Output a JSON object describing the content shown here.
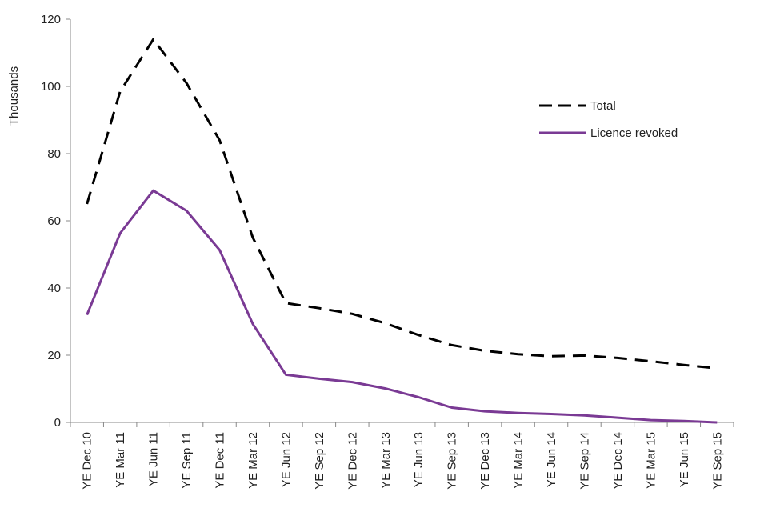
{
  "chart_data": {
    "type": "line",
    "title": "",
    "xlabel": "",
    "ylabel": "Thousands",
    "ylim": [
      0,
      120
    ],
    "yticks": [
      0,
      20,
      40,
      60,
      80,
      100,
      120
    ],
    "grid": false,
    "legend_position": "top-right",
    "categories": [
      "YE Dec 10",
      "YE Mar 11",
      "YE Jun 11",
      "YE Sep 11",
      "YE Dec 11",
      "YE Mar 12",
      "YE Jun 12",
      "YE Sep 12",
      "YE Dec 12",
      "YE Mar 13",
      "YE Jun 13",
      "YE Sep 13",
      "YE Dec 13",
      "YE Mar 14",
      "YE Jun 14",
      "YE Sep 14",
      "YE Dec 14",
      "YE Mar 15",
      "YE Jun 15",
      "YE Sep 15"
    ],
    "series": [
      {
        "name": "Total",
        "color": "#000000",
        "style": "dashed",
        "values": [
          65,
          98.5,
          114,
          101,
          84,
          55,
          35.5,
          34,
          32.3,
          29.5,
          26,
          23,
          21.3,
          20.3,
          19.7,
          19.9,
          19.2,
          18.2,
          17.1,
          16.1
        ]
      },
      {
        "name": "Licence revoked",
        "color": "#7a3a94",
        "style": "solid",
        "values": [
          32,
          56.3,
          69,
          63,
          51.3,
          29.3,
          14.2,
          13,
          12,
          10.1,
          7.5,
          4.4,
          3.3,
          2.8,
          2.5,
          2.1,
          1.4,
          0.7,
          0.4,
          0
        ]
      }
    ]
  }
}
